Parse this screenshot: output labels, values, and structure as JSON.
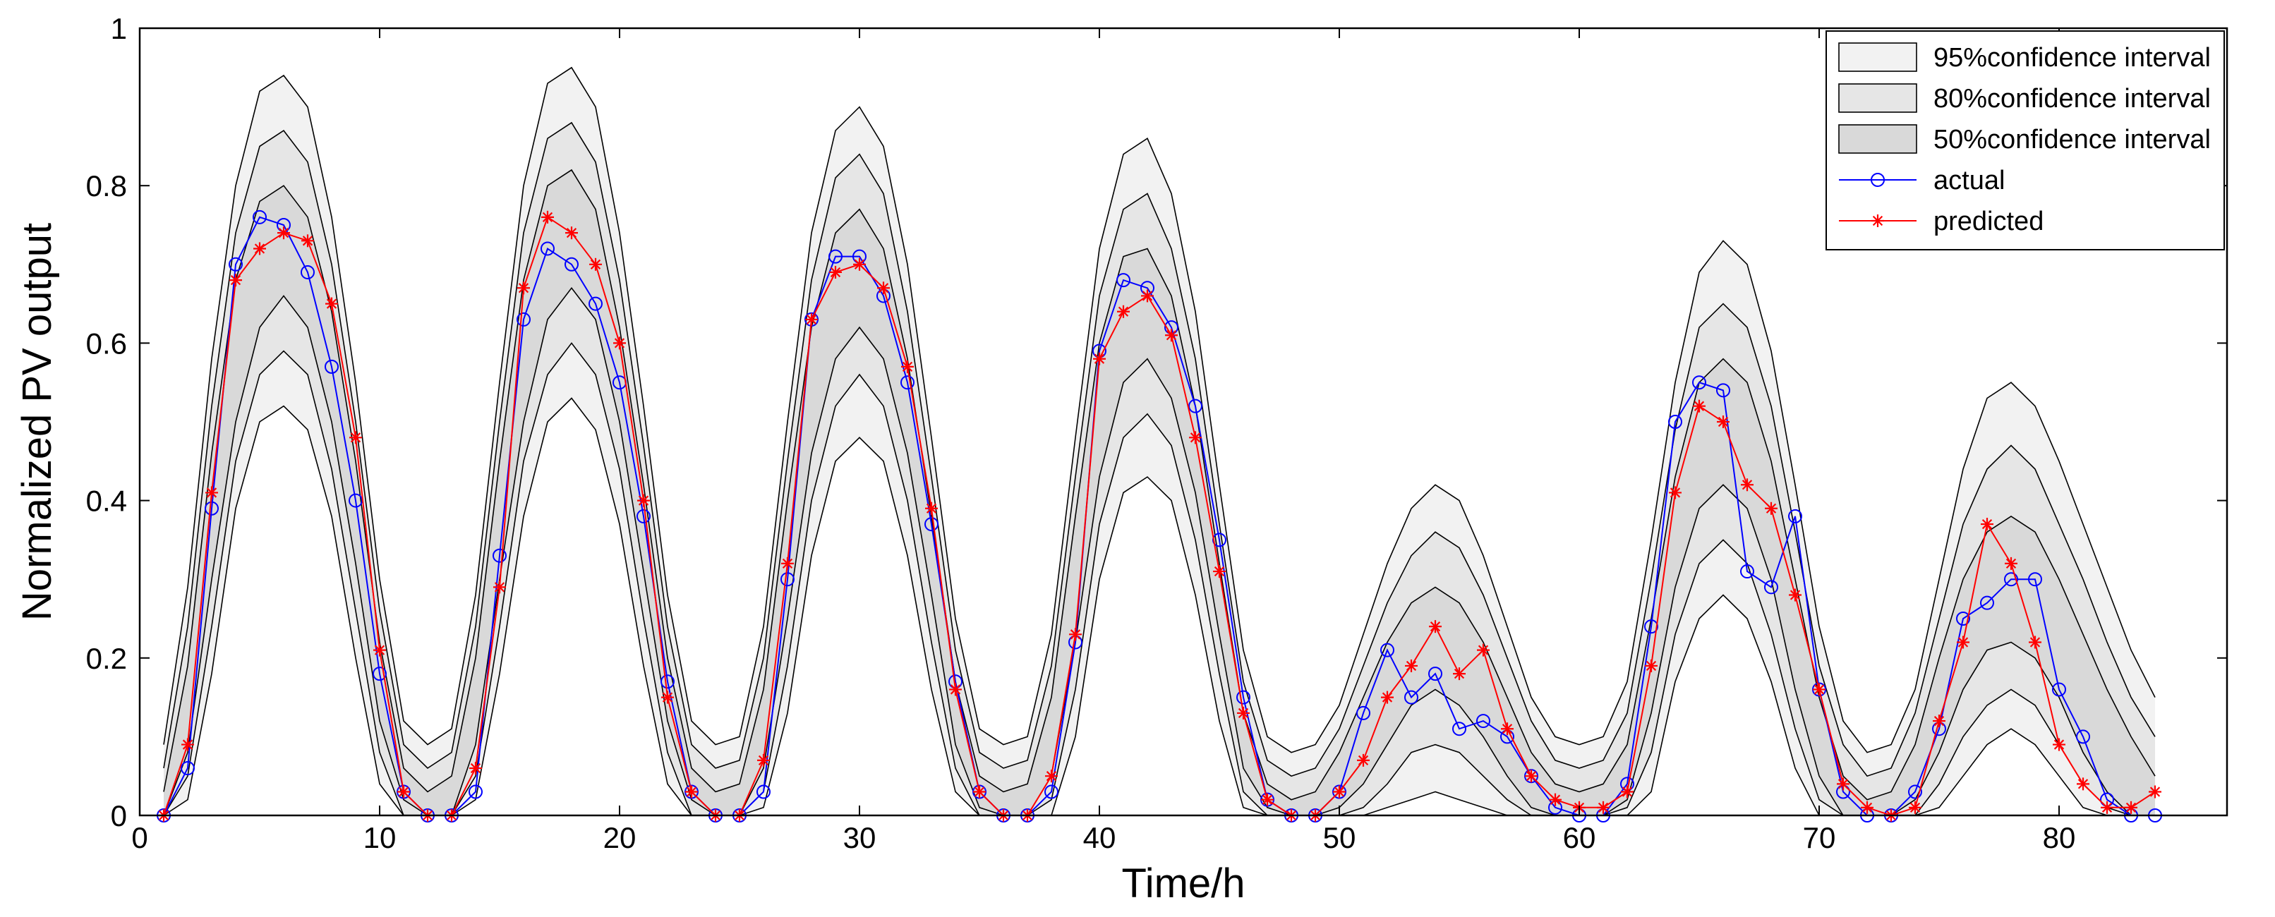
{
  "chart_data": {
    "type": "line",
    "title": "",
    "xlabel": "Time/h",
    "ylabel": "Normalized PV output",
    "xlim": [
      0,
      87
    ],
    "ylim": [
      0,
      1
    ],
    "xticks": [
      0,
      10,
      20,
      30,
      40,
      50,
      60,
      70,
      80
    ],
    "yticks": [
      0,
      0.2,
      0.4,
      0.6,
      0.8,
      1
    ],
    "ytick_labels": [
      "0",
      "0.2",
      "0.4",
      "0.6",
      "0.8",
      "1"
    ],
    "grid": false,
    "legend": {
      "placement": "top-right",
      "entries": [
        {
          "label": "95%confidence interval",
          "kind": "band",
          "color": "#f2f2f2"
        },
        {
          "label": "80%confidence interval",
          "kind": "band",
          "color": "#e6e6e6"
        },
        {
          "label": "50%confidence interval",
          "kind": "band",
          "color": "#d9d9d9"
        },
        {
          "label": "actual",
          "kind": "line",
          "color": "#0000ff",
          "marker": "circle"
        },
        {
          "label": "predicted",
          "kind": "line",
          "color": "#ff0000",
          "marker": "star"
        }
      ]
    },
    "bands": {
      "x": [
        1,
        2,
        3,
        4,
        5,
        6,
        7,
        8,
        9,
        10,
        11,
        12,
        13,
        14,
        15,
        16,
        17,
        18,
        19,
        20,
        21,
        22,
        23,
        24,
        25,
        26,
        27,
        28,
        29,
        30,
        31,
        32,
        33,
        34,
        35,
        36,
        37,
        38,
        39,
        40,
        41,
        42,
        43,
        44,
        45,
        46,
        47,
        48,
        49,
        50,
        51,
        52,
        53,
        54,
        55,
        56,
        57,
        58,
        59,
        60,
        61,
        62,
        63,
        64,
        65,
        66,
        67,
        68,
        69,
        70,
        71,
        72,
        73,
        74,
        75,
        76,
        77,
        78,
        79,
        80,
        81,
        82,
        83,
        84
      ],
      "upper95": [
        0.09,
        0.29,
        0.58,
        0.8,
        0.92,
        0.94,
        0.9,
        0.76,
        0.55,
        0.3,
        0.12,
        0.09,
        0.11,
        0.28,
        0.55,
        0.8,
        0.93,
        0.95,
        0.9,
        0.74,
        0.52,
        0.28,
        0.12,
        0.09,
        0.1,
        0.24,
        0.5,
        0.74,
        0.87,
        0.9,
        0.85,
        0.7,
        0.48,
        0.25,
        0.11,
        0.09,
        0.1,
        0.23,
        0.48,
        0.72,
        0.84,
        0.86,
        0.79,
        0.64,
        0.42,
        0.21,
        0.1,
        0.08,
        0.09,
        0.14,
        0.23,
        0.32,
        0.39,
        0.42,
        0.4,
        0.33,
        0.24,
        0.15,
        0.1,
        0.09,
        0.1,
        0.17,
        0.35,
        0.55,
        0.69,
        0.73,
        0.7,
        0.59,
        0.42,
        0.24,
        0.12,
        0.08,
        0.09,
        0.16,
        0.3,
        0.44,
        0.53,
        0.55,
        0.52,
        0.45,
        0.37,
        0.29,
        0.21,
        0.15
      ],
      "upper80": [
        0.06,
        0.24,
        0.52,
        0.74,
        0.85,
        0.87,
        0.83,
        0.7,
        0.5,
        0.26,
        0.09,
        0.06,
        0.08,
        0.24,
        0.5,
        0.74,
        0.86,
        0.88,
        0.83,
        0.68,
        0.47,
        0.24,
        0.09,
        0.06,
        0.07,
        0.2,
        0.45,
        0.68,
        0.81,
        0.84,
        0.79,
        0.64,
        0.43,
        0.21,
        0.08,
        0.06,
        0.07,
        0.19,
        0.43,
        0.66,
        0.77,
        0.79,
        0.72,
        0.58,
        0.37,
        0.17,
        0.07,
        0.05,
        0.06,
        0.11,
        0.19,
        0.27,
        0.33,
        0.36,
        0.34,
        0.28,
        0.2,
        0.12,
        0.07,
        0.06,
        0.07,
        0.13,
        0.3,
        0.49,
        0.62,
        0.65,
        0.62,
        0.52,
        0.36,
        0.19,
        0.09,
        0.05,
        0.06,
        0.13,
        0.25,
        0.37,
        0.44,
        0.47,
        0.44,
        0.37,
        0.3,
        0.22,
        0.15,
        0.1
      ],
      "upper50": [
        0.03,
        0.19,
        0.46,
        0.68,
        0.78,
        0.8,
        0.76,
        0.64,
        0.45,
        0.22,
        0.06,
        0.03,
        0.05,
        0.2,
        0.45,
        0.68,
        0.8,
        0.82,
        0.77,
        0.62,
        0.42,
        0.2,
        0.06,
        0.03,
        0.04,
        0.16,
        0.4,
        0.62,
        0.74,
        0.77,
        0.72,
        0.58,
        0.38,
        0.17,
        0.05,
        0.03,
        0.04,
        0.15,
        0.38,
        0.6,
        0.71,
        0.72,
        0.66,
        0.52,
        0.32,
        0.13,
        0.04,
        0.02,
        0.03,
        0.08,
        0.15,
        0.22,
        0.27,
        0.29,
        0.27,
        0.22,
        0.15,
        0.08,
        0.04,
        0.03,
        0.04,
        0.09,
        0.25,
        0.43,
        0.55,
        0.58,
        0.55,
        0.45,
        0.3,
        0.15,
        0.05,
        0.02,
        0.03,
        0.09,
        0.2,
        0.3,
        0.36,
        0.38,
        0.36,
        0.3,
        0.23,
        0.16,
        0.1,
        0.05
      ],
      "lower50": [
        0,
        0.08,
        0.3,
        0.5,
        0.62,
        0.66,
        0.62,
        0.5,
        0.32,
        0.12,
        0.02,
        0,
        0,
        0.09,
        0.3,
        0.5,
        0.63,
        0.67,
        0.63,
        0.5,
        0.31,
        0.12,
        0.02,
        0,
        0,
        0.06,
        0.25,
        0.46,
        0.58,
        0.62,
        0.58,
        0.46,
        0.28,
        0.09,
        0.01,
        0,
        0,
        0.05,
        0.22,
        0.43,
        0.55,
        0.58,
        0.53,
        0.41,
        0.23,
        0.06,
        0.01,
        0,
        0,
        0.01,
        0.04,
        0.09,
        0.14,
        0.16,
        0.14,
        0.1,
        0.05,
        0.01,
        0,
        0,
        0,
        0.02,
        0.13,
        0.29,
        0.39,
        0.42,
        0.39,
        0.3,
        0.16,
        0.05,
        0,
        0,
        0,
        0.02,
        0.08,
        0.16,
        0.21,
        0.22,
        0.2,
        0.15,
        0.08,
        0.03,
        0,
        0
      ],
      "lower80": [
        0,
        0.05,
        0.24,
        0.45,
        0.56,
        0.59,
        0.56,
        0.44,
        0.26,
        0.08,
        0,
        0,
        0,
        0.05,
        0.24,
        0.45,
        0.56,
        0.6,
        0.56,
        0.44,
        0.25,
        0.08,
        0,
        0,
        0,
        0.03,
        0.19,
        0.4,
        0.52,
        0.56,
        0.52,
        0.4,
        0.22,
        0.06,
        0,
        0,
        0,
        0.02,
        0.16,
        0.37,
        0.48,
        0.51,
        0.47,
        0.35,
        0.18,
        0.03,
        0,
        0,
        0,
        0,
        0.01,
        0.04,
        0.08,
        0.09,
        0.08,
        0.05,
        0.02,
        0,
        0,
        0,
        0,
        0.01,
        0.08,
        0.23,
        0.32,
        0.35,
        0.32,
        0.23,
        0.11,
        0.02,
        0,
        0,
        0,
        0,
        0.04,
        0.1,
        0.14,
        0.16,
        0.14,
        0.09,
        0.04,
        0.01,
        0,
        0
      ],
      "lower95": [
        0,
        0.02,
        0.18,
        0.39,
        0.5,
        0.52,
        0.49,
        0.38,
        0.2,
        0.04,
        0,
        0,
        0,
        0.02,
        0.18,
        0.38,
        0.5,
        0.53,
        0.49,
        0.37,
        0.19,
        0.04,
        0,
        0,
        0,
        0.01,
        0.13,
        0.33,
        0.45,
        0.48,
        0.45,
        0.33,
        0.16,
        0.03,
        0,
        0,
        0,
        0,
        0.1,
        0.3,
        0.41,
        0.43,
        0.4,
        0.28,
        0.12,
        0.01,
        0,
        0,
        0,
        0,
        0,
        0.01,
        0.02,
        0.03,
        0.02,
        0.01,
        0,
        0,
        0,
        0,
        0,
        0,
        0.03,
        0.17,
        0.25,
        0.28,
        0.25,
        0.17,
        0.06,
        0,
        0,
        0,
        0,
        0,
        0.01,
        0.05,
        0.09,
        0.11,
        0.09,
        0.05,
        0.01,
        0,
        0,
        0
      ]
    },
    "series": [
      {
        "name": "actual",
        "color": "#0000ff",
        "marker": "circle",
        "x": [
          1,
          2,
          3,
          4,
          5,
          6,
          7,
          8,
          9,
          10,
          11,
          12,
          13,
          14,
          15,
          16,
          17,
          18,
          19,
          20,
          21,
          22,
          23,
          24,
          25,
          26,
          27,
          28,
          29,
          30,
          31,
          32,
          33,
          34,
          35,
          36,
          37,
          38,
          39,
          40,
          41,
          42,
          43,
          44,
          45,
          46,
          47,
          48,
          49,
          50,
          51,
          52,
          53,
          54,
          55,
          56,
          57,
          58,
          59,
          60,
          61,
          62,
          63,
          64,
          65,
          66,
          67,
          68,
          69,
          70,
          71,
          72,
          73,
          74,
          75,
          76,
          77,
          78,
          79,
          80,
          81,
          82,
          83,
          84
        ],
        "values": [
          0,
          0.06,
          0.39,
          0.7,
          0.76,
          0.75,
          0.69,
          0.57,
          0.4,
          0.18,
          0.03,
          0,
          0,
          0.03,
          0.33,
          0.63,
          0.72,
          0.7,
          0.65,
          0.55,
          0.38,
          0.17,
          0.03,
          0,
          0,
          0.03,
          0.3,
          0.63,
          0.71,
          0.71,
          0.66,
          0.55,
          0.37,
          0.17,
          0.03,
          0,
          0,
          0.03,
          0.22,
          0.59,
          0.68,
          0.67,
          0.62,
          0.52,
          0.35,
          0.15,
          0.02,
          0,
          0,
          0.03,
          0.13,
          0.21,
          0.15,
          0.18,
          0.11,
          0.12,
          0.1,
          0.05,
          0.01,
          0,
          0,
          0.04,
          0.24,
          0.5,
          0.55,
          0.54,
          0.31,
          0.29,
          0.38,
          0.16,
          0.03,
          0,
          0,
          0.03,
          0.11,
          0.25,
          0.27,
          0.3,
          0.3,
          0.16,
          0.1,
          0.02,
          0,
          0
        ]
      },
      {
        "name": "predicted",
        "color": "#ff0000",
        "marker": "star",
        "x": [
          1,
          2,
          3,
          4,
          5,
          6,
          7,
          8,
          9,
          10,
          11,
          12,
          13,
          14,
          15,
          16,
          17,
          18,
          19,
          20,
          21,
          22,
          23,
          24,
          25,
          26,
          27,
          28,
          29,
          30,
          31,
          32,
          33,
          34,
          35,
          36,
          37,
          38,
          39,
          40,
          41,
          42,
          43,
          44,
          45,
          46,
          47,
          48,
          49,
          50,
          51,
          52,
          53,
          54,
          55,
          56,
          57,
          58,
          59,
          60,
          61,
          62,
          63,
          64,
          65,
          66,
          67,
          68,
          69,
          70,
          71,
          72,
          73,
          74,
          75,
          76,
          77,
          78,
          79,
          80,
          81,
          82,
          83,
          84
        ],
        "values": [
          0,
          0.09,
          0.41,
          0.68,
          0.72,
          0.74,
          0.73,
          0.65,
          0.48,
          0.21,
          0.03,
          0,
          0,
          0.06,
          0.29,
          0.67,
          0.76,
          0.74,
          0.7,
          0.6,
          0.4,
          0.15,
          0.03,
          0,
          0,
          0.07,
          0.32,
          0.63,
          0.69,
          0.7,
          0.67,
          0.57,
          0.39,
          0.16,
          0.03,
          0,
          0,
          0.05,
          0.23,
          0.58,
          0.64,
          0.66,
          0.61,
          0.48,
          0.31,
          0.13,
          0.02,
          0,
          0,
          0.03,
          0.07,
          0.15,
          0.19,
          0.24,
          0.18,
          0.21,
          0.11,
          0.05,
          0.02,
          0.01,
          0.01,
          0.03,
          0.19,
          0.41,
          0.52,
          0.5,
          0.42,
          0.39,
          0.28,
          0.16,
          0.04,
          0.01,
          0,
          0.01,
          0.12,
          0.22,
          0.37,
          0.32,
          0.22,
          0.09,
          0.04,
          0.01,
          0.01,
          0.03
        ]
      }
    ]
  }
}
